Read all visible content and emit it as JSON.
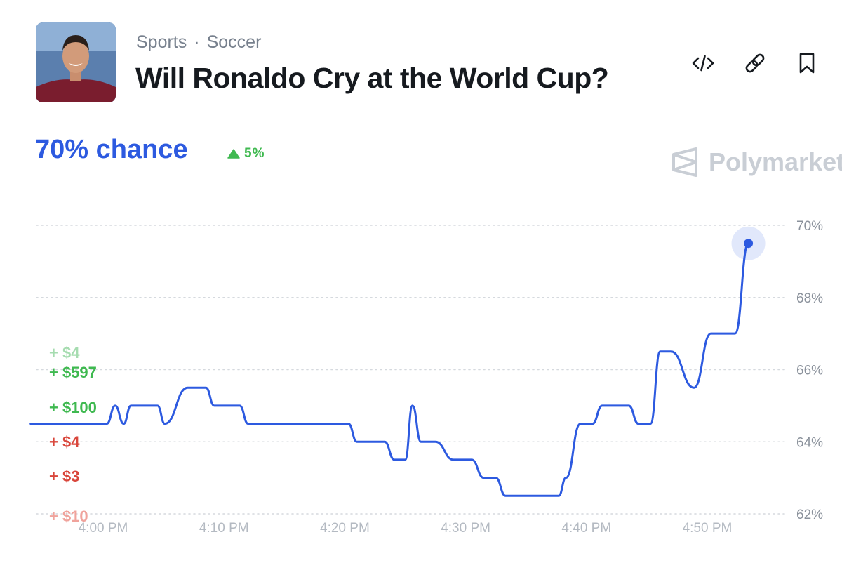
{
  "header": {
    "breadcrumb": {
      "category": "Sports",
      "separator": "·",
      "subcategory": "Soccer"
    },
    "title": "Will Ronaldo Cry at the World Cup?",
    "actions": [
      "embed-icon",
      "link-icon",
      "bookmark-icon"
    ]
  },
  "odds": {
    "chance_label": "70% chance",
    "delta_label": "5%",
    "delta_direction": "up"
  },
  "watermark": {
    "text": "Polymarket"
  },
  "trades": [
    {
      "label": "+ $4",
      "side": "buy",
      "color": "#a6dcb0"
    },
    {
      "label": "+ $597",
      "side": "buy",
      "color": "#3fb950"
    },
    {
      "label": "+ $100",
      "side": "buy",
      "color": "#3fb950"
    },
    {
      "label": "+ $4",
      "side": "sell",
      "color": "#d9463b"
    },
    {
      "label": "+ $3",
      "side": "sell",
      "color": "#d9463b"
    },
    {
      "label": "+ $10",
      "side": "sell",
      "color": "#f0a39c"
    }
  ],
  "colors": {
    "accent": "#2d5ae0",
    "up": "#3fb950",
    "down": "#d9463b",
    "grid": "#d5d9de",
    "axis_text": "#8a919b"
  },
  "chart_data": {
    "type": "line",
    "x_unit": "minutes after 4:00 PM",
    "xticks": [
      "4:00 PM",
      "4:10 PM",
      "4:20 PM",
      "4:30 PM",
      "4:40 PM",
      "4:50 PM"
    ],
    "yticks": [
      "62%",
      "64%",
      "66%",
      "68%",
      "70%"
    ],
    "ylim": [
      62,
      70
    ],
    "grid": true,
    "series": [
      {
        "points": [
          [
            -6,
            64.5
          ],
          [
            0,
            64.5
          ],
          [
            0.3,
            64.5
          ],
          [
            1,
            65
          ],
          [
            1.7,
            64.5
          ],
          [
            2.3,
            65
          ],
          [
            4.5,
            65
          ],
          [
            5.1,
            64.5
          ],
          [
            7,
            65.5
          ],
          [
            8.5,
            65.5
          ],
          [
            9.2,
            65
          ],
          [
            11.3,
            65
          ],
          [
            12,
            64.5
          ],
          [
            20.3,
            64.5
          ],
          [
            21,
            64
          ],
          [
            23.3,
            64
          ],
          [
            24.1,
            63.5
          ],
          [
            25,
            63.5
          ],
          [
            25.6,
            65
          ],
          [
            26.3,
            64
          ],
          [
            27.5,
            64
          ],
          [
            29,
            63.5
          ],
          [
            30.5,
            63.5
          ],
          [
            31.5,
            63
          ],
          [
            32.5,
            63
          ],
          [
            33.3,
            62.5
          ],
          [
            37.7,
            62.5
          ],
          [
            38.3,
            63
          ],
          [
            39.5,
            64.5
          ],
          [
            40.5,
            64.5
          ],
          [
            41.3,
            65
          ],
          [
            43.5,
            65
          ],
          [
            44.3,
            64.5
          ],
          [
            45.3,
            64.5
          ],
          [
            46.1,
            66.5
          ],
          [
            47,
            66.5
          ],
          [
            48.9,
            65.5
          ],
          [
            50.3,
            67
          ],
          [
            52.3,
            67
          ],
          [
            53.4,
            69.5
          ]
        ],
        "current": [
          53.4,
          69.5
        ]
      }
    ]
  }
}
